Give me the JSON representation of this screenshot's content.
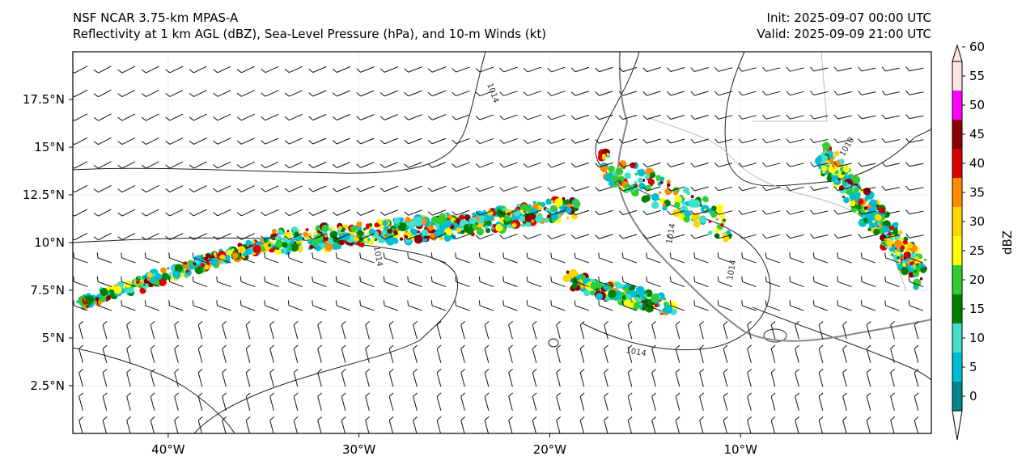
{
  "title": {
    "model": "NSF NCAR 3.75-km MPAS-A",
    "fields": "Reflectivity at 1 km AGL (dBZ), Sea-Level Pressure (hPa), and 10-m Winds (kt)",
    "init": "Init: 2025-09-07 00:00 UTC",
    "valid": "Valid: 2025-09-09 21:00 UTC"
  },
  "map": {
    "lon_range": [
      -45,
      0
    ],
    "lat_range": [
      0,
      20
    ],
    "lon_ticks": [
      {
        "value": -40,
        "label": "40°W"
      },
      {
        "value": -30,
        "label": "30°W"
      },
      {
        "value": -20,
        "label": "20°W"
      },
      {
        "value": -10,
        "label": "10°W"
      }
    ],
    "lat_ticks": [
      {
        "value": 2.5,
        "label": "2.5°N"
      },
      {
        "value": 5,
        "label": "5°N"
      },
      {
        "value": 7.5,
        "label": "7.5°N"
      },
      {
        "value": 10,
        "label": "10°N"
      },
      {
        "value": 12.5,
        "label": "12.5°N"
      },
      {
        "value": 15,
        "label": "15°N"
      },
      {
        "value": 17.5,
        "label": "17.5°N"
      }
    ],
    "isobar_labels": [
      "1014",
      "1014",
      "1014",
      "1014",
      "1010",
      "1014"
    ]
  },
  "colorbar": {
    "label": "dBZ",
    "ticks": [
      "0",
      "5",
      "10",
      "15",
      "20",
      "25",
      "30",
      "35",
      "40",
      "45",
      "50",
      "55",
      "60"
    ],
    "colors": [
      "#ffffff",
      "#00868b",
      "#00bcd4",
      "#40e0d0",
      "#008000",
      "#32cd32",
      "#ffff00",
      "#ffd700",
      "#ff8c00",
      "#dd0000",
      "#8b0000",
      "#ff00ff",
      "#ffe4e1"
    ]
  }
}
